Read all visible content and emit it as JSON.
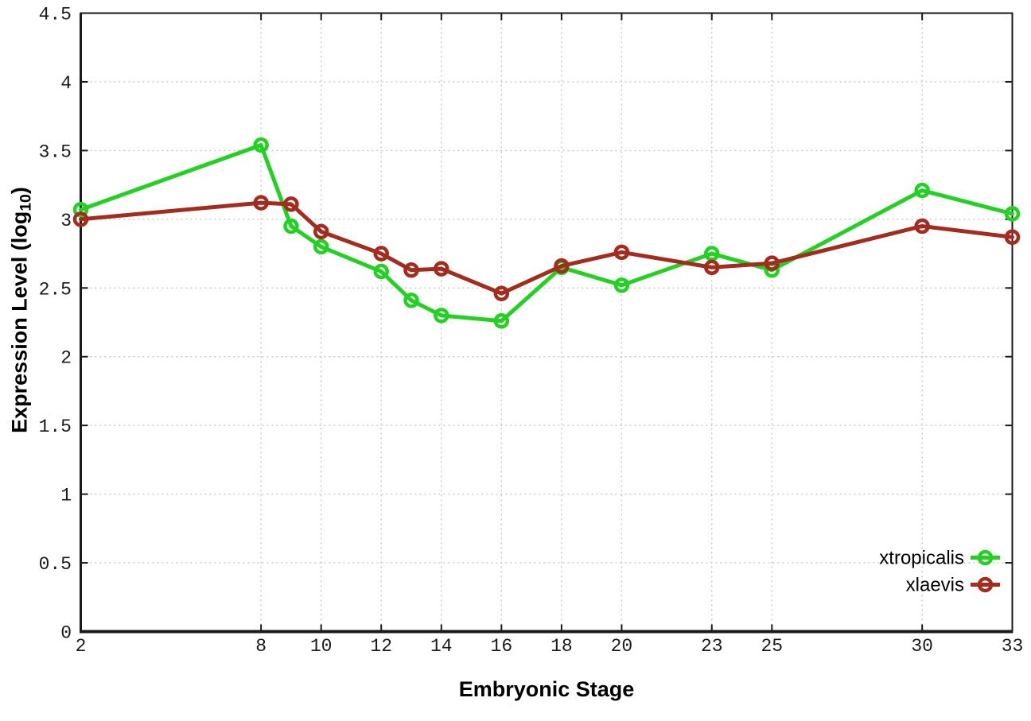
{
  "figure": {
    "background": "#ffffff",
    "border_color": "#1a1a1a",
    "grid_color": "#c0c0c0"
  },
  "chart_data": {
    "type": "line",
    "title": "",
    "xlabel": "Embryonic Stage",
    "ylabel_prefix": "Expression Level (log",
    "ylabel_sub": "10",
    "ylabel_suffix": ")",
    "x": [
      2,
      8,
      9,
      10,
      12,
      13,
      14,
      16,
      18,
      20,
      23,
      25,
      30,
      33
    ],
    "xticks": [
      2,
      8,
      10,
      12,
      14,
      16,
      18,
      20,
      23,
      25,
      30,
      33
    ],
    "yticks": [
      0,
      0.5,
      1,
      1.5,
      2,
      2.5,
      3,
      3.5,
      4,
      4.5
    ],
    "xlim": [
      2,
      33
    ],
    "ylim": [
      0,
      4.5
    ],
    "grid": true,
    "legend_position": "bottom-right-inside",
    "series": [
      {
        "name": "xtropicalis",
        "color": "#23d123",
        "values": [
          3.07,
          3.54,
          2.95,
          2.8,
          2.62,
          2.41,
          2.3,
          2.26,
          2.65,
          2.52,
          2.75,
          2.63,
          3.21,
          3.04
        ]
      },
      {
        "name": "xlaevis",
        "color": "#a32c1e",
        "values": [
          3.0,
          3.12,
          3.11,
          2.91,
          2.75,
          2.63,
          2.64,
          2.46,
          2.66,
          2.76,
          2.65,
          2.68,
          2.95,
          2.87
        ]
      }
    ]
  }
}
